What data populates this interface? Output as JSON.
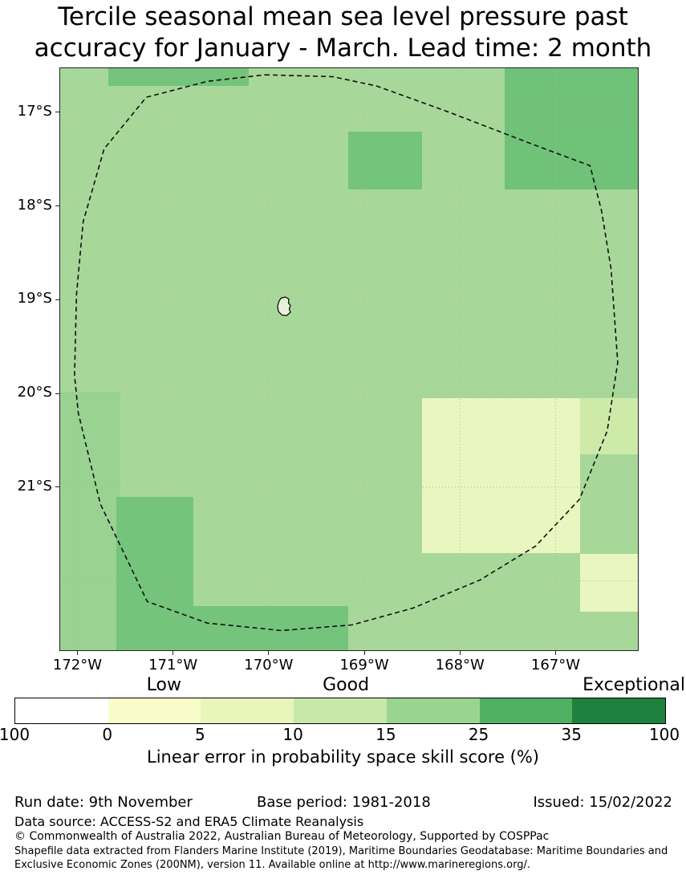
{
  "title": {
    "lines": [
      "Tercile seasonal mean sea level pressure past",
      "accuracy for January - March. Lead time: 2 month"
    ]
  },
  "chart_data": {
    "type": "heatmap",
    "title": "Tercile seasonal mean sea level pressure past accuracy for January - March. Lead time: 2 month",
    "x_axis": {
      "ticks": [
        {
          "lon": 172,
          "label": "172°W"
        },
        {
          "lon": 171,
          "label": "171°W"
        },
        {
          "lon": 170,
          "label": "170°W"
        },
        {
          "lon": 169,
          "label": "169°W"
        },
        {
          "lon": 168,
          "label": "168°W"
        },
        {
          "lon": 167,
          "label": "167°W"
        }
      ]
    },
    "y_axis": {
      "ticks": [
        {
          "lat": 17,
          "label": "17°S"
        },
        {
          "lat": 18,
          "label": "18°S"
        },
        {
          "lat": 19,
          "label": "19°S"
        },
        {
          "lat": 20,
          "label": "20°S"
        },
        {
          "lat": 21,
          "label": "21°S"
        }
      ],
      "extra_gridline_lat": 22
    },
    "base_cell": {
      "band": "15-25",
      "color": "#a7d89a"
    },
    "patches": [
      {
        "name": "north-strip",
        "band": "25-35",
        "color": "#74c47b",
        "lon": [
          171.68,
          170.21
        ],
        "lat": [
          16.53,
          16.72
        ]
      },
      {
        "name": "northeast-block",
        "band": "25-35",
        "color": "#6fc278",
        "lon": [
          167.53,
          166.14
        ],
        "lat": [
          16.53,
          17.82
        ]
      },
      {
        "name": "north-central-block",
        "band": "25-35",
        "color": "#74c47b",
        "lon": [
          169.17,
          168.4
        ],
        "lat": [
          17.21,
          17.82
        ]
      },
      {
        "name": "west-column",
        "band": "15-25",
        "color": "#99d291",
        "lon": [
          172.18,
          171.55
        ],
        "lat": [
          19.98,
          22.74
        ]
      },
      {
        "name": "southwest-block",
        "band": "25-35",
        "color": "#74c47b",
        "lon": [
          171.59,
          170.79
        ],
        "lat": [
          21.1,
          22.74
        ]
      },
      {
        "name": "south-strip",
        "band": "25-35",
        "color": "#74c47b",
        "lon": [
          170.79,
          169.17
        ],
        "lat": [
          22.27,
          22.74
        ]
      },
      {
        "name": "southeast-pale-block",
        "band": "5-10",
        "color": "#e9f6bf",
        "lon": [
          168.4,
          166.74
        ],
        "lat": [
          20.05,
          21.7
        ]
      },
      {
        "name": "east-light-block",
        "band": "10-15",
        "color": "#cdeaa9",
        "lon": [
          166.74,
          166.14
        ],
        "lat": [
          20.05,
          20.65
        ]
      },
      {
        "name": "east-pale-block",
        "band": "5-10",
        "color": "#e9f6bf",
        "lon": [
          166.74,
          166.14
        ],
        "lat": [
          21.71,
          22.33
        ]
      }
    ],
    "eez_boundary": [
      [
        170.04,
        16.6
      ],
      [
        169.33,
        16.62
      ],
      [
        168.87,
        16.72
      ],
      [
        168.11,
        17.0
      ],
      [
        167.27,
        17.33
      ],
      [
        166.64,
        17.57
      ],
      [
        166.52,
        18.05
      ],
      [
        166.42,
        18.67
      ],
      [
        166.35,
        19.67
      ],
      [
        166.46,
        20.4
      ],
      [
        166.75,
        21.13
      ],
      [
        167.21,
        21.63
      ],
      [
        167.79,
        21.99
      ],
      [
        168.49,
        22.29
      ],
      [
        169.13,
        22.47
      ],
      [
        169.87,
        22.53
      ],
      [
        170.64,
        22.45
      ],
      [
        171.27,
        22.22
      ],
      [
        171.76,
        21.18
      ],
      [
        171.99,
        20.21
      ],
      [
        172.03,
        19.81
      ],
      [
        172.01,
        18.95
      ],
      [
        171.94,
        18.17
      ],
      [
        171.72,
        17.39
      ],
      [
        171.28,
        16.84
      ],
      [
        170.64,
        16.67
      ]
    ],
    "island": {
      "name": "Niue",
      "lon": 169.87,
      "lat": 19.05
    },
    "colorbar": {
      "quality_labels": [
        "Low",
        "Good",
        "Exceptional"
      ],
      "colors": [
        "#ffffff",
        "#f9fcc9",
        "#e9f6bb",
        "#c7e8a8",
        "#9ad491",
        "#4fb062",
        "#1f813e"
      ],
      "tick_labels": [
        "100",
        "0",
        "5",
        "10",
        "15",
        "25",
        "35",
        "100"
      ],
      "caption": "Linear error in probability space skill score (%)"
    }
  },
  "footer": {
    "run_date": "Run date: 9th November",
    "base_period": "Base period: 1981-2018",
    "issued": "Issued: 15/02/2022",
    "data_source": "Data source: ACCESS-S2 and ERA5 Climate Reanalysis",
    "copyright": "© Commonwealth of Australia 2022, Australian Bureau of Meteorology, Supported by COSPPac",
    "shapefile_note": "Shapefile data extracted from Flanders Marine Institute (2019), Maritime Boundaries Geodatabase: Maritime Boundaries and Exclusive Economic Zones (200NM), version 11. Available online at http://www.marineregions.org/."
  }
}
